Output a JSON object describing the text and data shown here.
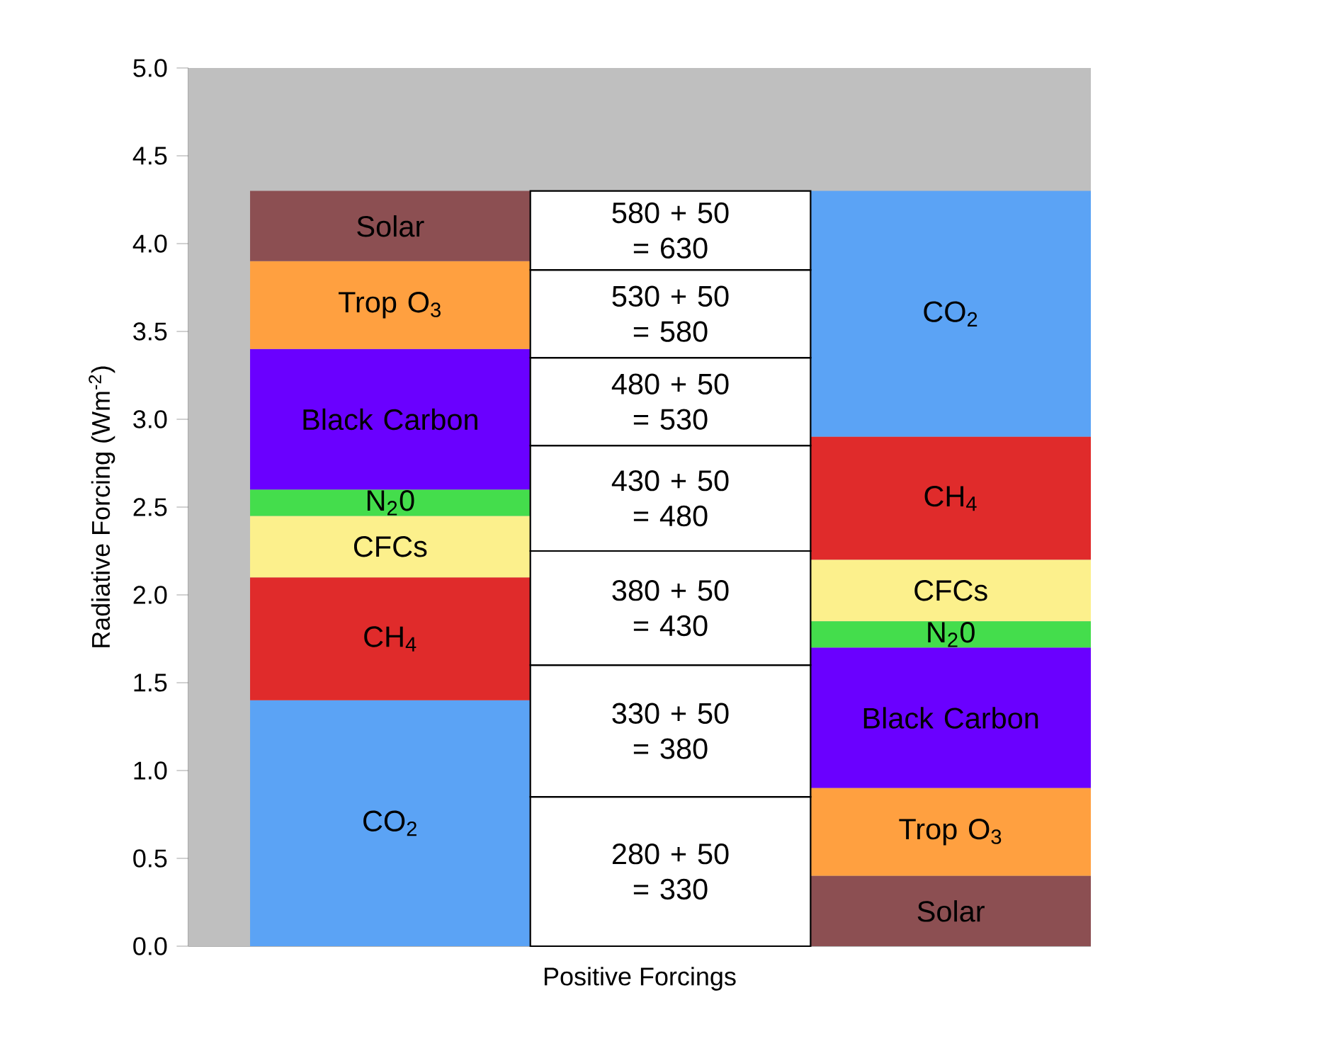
{
  "chart_data": {
    "type": "bar",
    "xlabel": "Positive Forcings",
    "ylabel": "Radiative Forcing (Wm$^{-2}$)",
    "categories": [
      null,
      null,
      null
    ],
    "ylim": [
      0,
      5
    ],
    "yticks": [
      {
        "value": 0,
        "label": "0.0"
      },
      {
        "value": 0.5,
        "label": "0.5"
      },
      {
        "value": 1,
        "label": "1.0"
      },
      {
        "value": 1.5,
        "label": "1.5"
      },
      {
        "value": 2,
        "label": "2.0"
      },
      {
        "value": 2.5,
        "label": "2.5"
      },
      {
        "value": 3,
        "label": "3.0"
      },
      {
        "value": 3.5,
        "label": "3.5"
      },
      {
        "value": 4,
        "label": "4.0"
      },
      {
        "value": 4.5,
        "label": "4.5"
      },
      {
        "value": 5,
        "label": "5.0"
      }
    ],
    "grid": false,
    "series": [
      {
        "name": "CO$_{2}$",
        "color": "#5ba3f5",
        "values": [
          1.4,
          null,
          1.4
        ],
        "base": [
          0,
          null,
          2.9
        ]
      },
      {
        "name": "CH$_{4}$",
        "color": "#e02b2b",
        "values": [
          0.7,
          null,
          0.7
        ],
        "base": [
          1.4,
          null,
          2.2
        ]
      },
      {
        "name": "CFCs",
        "color": "#fcf08c",
        "values": [
          0.35,
          null,
          0.35
        ],
        "base": [
          2.1,
          null,
          1.85
        ]
      },
      {
        "name": "N$_{2}$0",
        "color": "#44dd4c",
        "values": [
          0.15,
          null,
          0.15
        ],
        "base": [
          2.45,
          null,
          1.7
        ]
      },
      {
        "name": "Black Carbon",
        "color": "#6a00ff",
        "values": [
          0.8,
          null,
          0.8
        ],
        "base": [
          2.6,
          null,
          0.9
        ]
      },
      {
        "name": "Trop O$_{3}$",
        "color": "#ffa040",
        "values": [
          0.5,
          null,
          0.5
        ],
        "base": [
          3.4,
          null,
          0.4
        ]
      },
      {
        "name": "Solar",
        "color": "#8c4f52",
        "values": [
          0.4,
          null,
          0.4
        ],
        "base": [
          3.9,
          null,
          0
        ]
      },
      {
        "name": "280 + 50 = 330",
        "color": "#ffffff",
        "values": [
          null,
          0.85,
          null
        ],
        "base": [
          null,
          0,
          null
        ]
      },
      {
        "name": "330 + 50 = 380",
        "color": "#ffffff",
        "values": [
          null,
          0.75,
          null
        ],
        "base": [
          null,
          0.85,
          null
        ]
      },
      {
        "name": "380 + 50 = 430",
        "color": "#ffffff",
        "values": [
          null,
          0.65,
          null
        ],
        "base": [
          null,
          1.6,
          null
        ]
      },
      {
        "name": "430 + 50 = 480",
        "color": "#ffffff",
        "values": [
          null,
          0.6,
          null
        ],
        "base": [
          null,
          2.25,
          null
        ]
      },
      {
        "name": "480 + 50 = 530",
        "color": "#ffffff",
        "values": [
          null,
          0.5,
          null
        ],
        "base": [
          null,
          2.85,
          null
        ]
      },
      {
        "name": "530 + 50 = 580",
        "color": "#ffffff",
        "values": [
          null,
          0.5,
          null
        ],
        "base": [
          null,
          3.35,
          null
        ]
      },
      {
        "name": "580 + 50 = 630",
        "color": "#ffffff",
        "values": [
          null,
          0.45,
          null
        ],
        "base": [
          null,
          3.85,
          null
        ]
      }
    ]
  }
}
